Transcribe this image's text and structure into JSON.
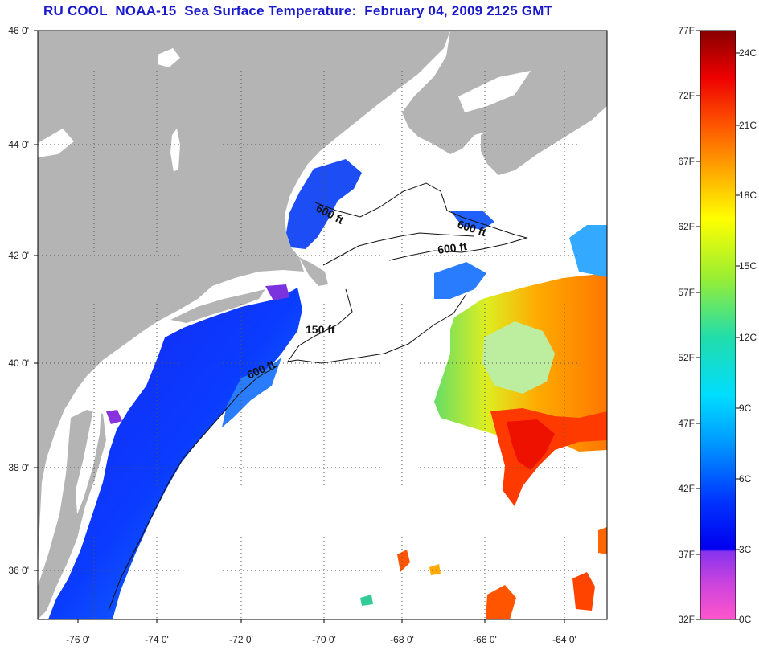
{
  "title": "RU COOL  NOAA-15  Sea Surface Temperature:  February 04, 2009 2125 GMT",
  "map": {
    "lat_labels": [
      "46 0'",
      "44 0'",
      "42 0'",
      "40 0'",
      "38 0'",
      "36 0'"
    ],
    "lon_labels": [
      "-76 0'",
      "-74 0'",
      "-72 0'",
      "-70 0'",
      "-68 0'",
      "-66 0'",
      "-64 0'"
    ],
    "depth_contour_labels": [
      "600 ft",
      "600 ft",
      "600 ft",
      "150 ft",
      "600 ft"
    ],
    "colors": {
      "land": "#b4b4b4",
      "ocean_no_data": "#ffffff",
      "grid": "#555555"
    }
  },
  "colorbar": {
    "fahrenheit_labels": [
      "77F",
      "72F",
      "67F",
      "62F",
      "57F",
      "52F",
      "47F",
      "42F",
      "37F",
      "32F"
    ],
    "celsius_labels": [
      "24C",
      "21C",
      "18C",
      "15C",
      "12C",
      "9C",
      "6C",
      "3C",
      "0C"
    ],
    "gradient_colors": [
      "#ff55cc",
      "#8833ee",
      "#0000ee",
      "#0066ff",
      "#00ccff",
      "#22ddaa",
      "#99ee33",
      "#ffff00",
      "#ffaa00",
      "#ff5500",
      "#ee0000",
      "#880000"
    ]
  }
}
